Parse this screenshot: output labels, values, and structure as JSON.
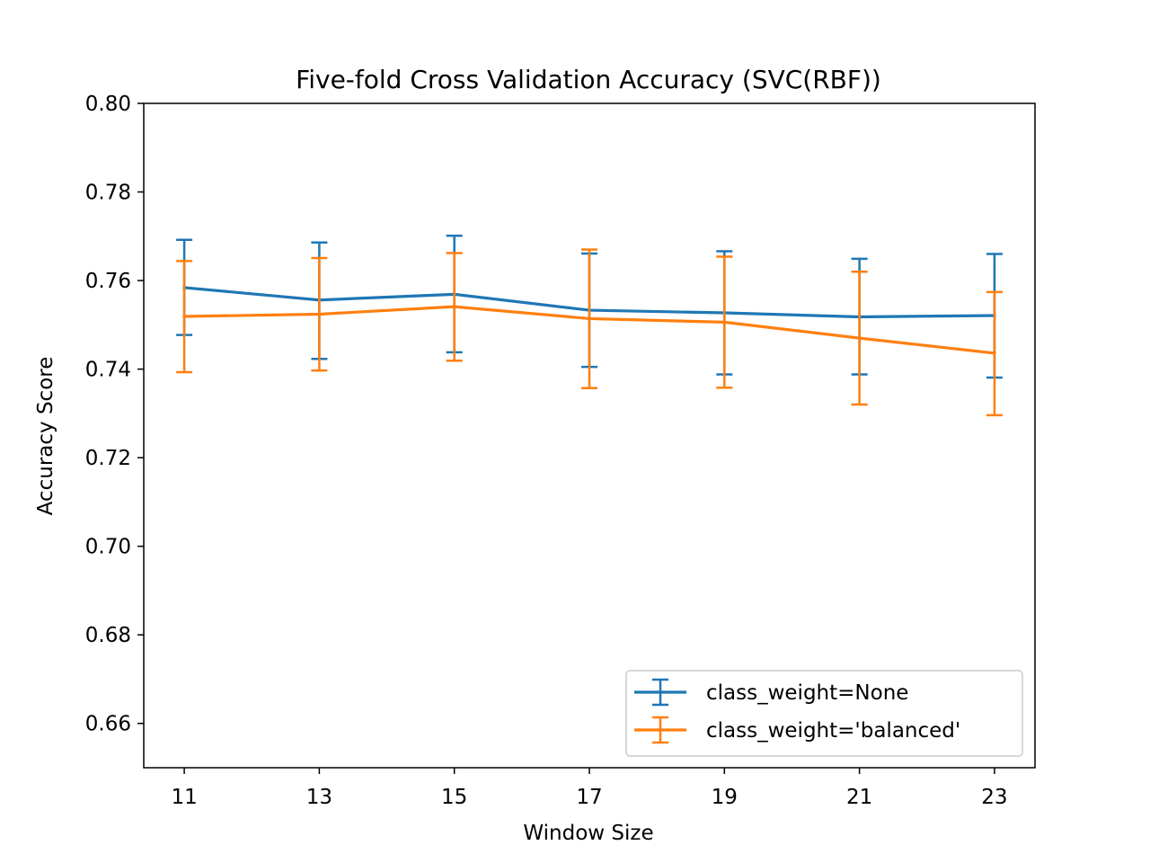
{
  "chart_data": {
    "type": "line",
    "title": "Five-fold Cross Validation Accuracy (SVC(RBF))",
    "xlabel": "Window Size",
    "ylabel": "Accuracy Score",
    "x": [
      11,
      13,
      15,
      17,
      19,
      21,
      23
    ],
    "xticks": [
      "11",
      "13",
      "15",
      "17",
      "19",
      "21",
      "23"
    ],
    "xlim": [
      10.4,
      23.6
    ],
    "ylim": [
      0.65,
      0.8
    ],
    "yticks": [
      "0.66",
      "0.68",
      "0.70",
      "0.72",
      "0.74",
      "0.76",
      "0.78",
      "0.80"
    ],
    "grid": false,
    "legend_position": "lower-right",
    "error_bars": true,
    "series": [
      {
        "name": "class_weight=None",
        "color": "#1f77b4",
        "values": [
          0.7584,
          0.7556,
          0.7569,
          0.7533,
          0.7527,
          0.7518,
          0.7521
        ],
        "error_low": [
          0.7477,
          0.7423,
          0.7438,
          0.7405,
          0.7388,
          0.7388,
          0.7381
        ],
        "error_high": [
          0.7692,
          0.7686,
          0.7701,
          0.7661,
          0.7666,
          0.7649,
          0.766
        ]
      },
      {
        "name": "class_weight='balanced'",
        "color": "#ff7f0e",
        "values": [
          0.7519,
          0.7524,
          0.7541,
          0.7514,
          0.7506,
          0.747,
          0.7436
        ],
        "error_low": [
          0.7393,
          0.7397,
          0.7419,
          0.7357,
          0.7358,
          0.732,
          0.7296
        ],
        "error_high": [
          0.7644,
          0.7651,
          0.7662,
          0.767,
          0.7654,
          0.762,
          0.7574
        ]
      }
    ]
  }
}
